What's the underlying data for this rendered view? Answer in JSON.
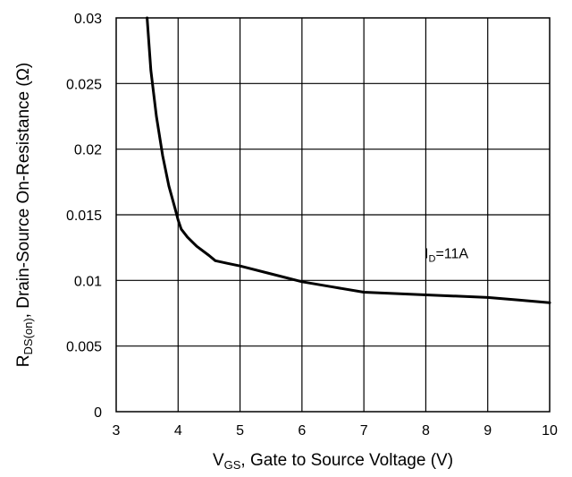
{
  "chart_data": {
    "type": "line",
    "title": "",
    "xlabel": {
      "main": "V",
      "sub": "GS",
      "rest": ", Gate to Source Voltage (V)"
    },
    "ylabel": {
      "main": "R",
      "sub": "DS(on)",
      "rest": ", Drain-Source On-Resistance (Ω)"
    },
    "xlim": [
      3,
      10
    ],
    "ylim": [
      0,
      0.03
    ],
    "x_ticks": [
      3,
      4,
      5,
      6,
      7,
      8,
      9,
      10
    ],
    "y_ticks": [
      0,
      0.005,
      0.01,
      0.015,
      0.02,
      0.025,
      0.03
    ],
    "x_tick_labels": [
      "3",
      "4",
      "5",
      "6",
      "7",
      "8",
      "9",
      "10"
    ],
    "y_tick_labels": [
      "0",
      "0.005",
      "0.01",
      "0.015",
      "0.02",
      "0.025",
      "0.03"
    ],
    "grid": true,
    "legend": "none",
    "annotation": {
      "main": "I",
      "sub": "D",
      "rest": "=11A"
    },
    "series": [
      {
        "color": "#000000",
        "x": [
          3.5,
          3.56,
          3.65,
          3.75,
          3.85,
          3.95,
          4.0,
          4.05,
          4.15,
          4.3,
          4.5,
          4.6,
          4.8,
          5.0,
          5.5,
          6.0,
          6.5,
          7.0,
          7.5,
          8.0,
          8.5,
          9.0,
          9.5,
          10.0
        ],
        "y": [
          0.03,
          0.026,
          0.0225,
          0.0195,
          0.0172,
          0.0155,
          0.0146,
          0.0139,
          0.0133,
          0.0126,
          0.0119,
          0.0115,
          0.0113,
          0.0111,
          0.0105,
          0.0099,
          0.0095,
          0.0091,
          0.009,
          0.0089,
          0.0088,
          0.0087,
          0.0085,
          0.0083
        ]
      }
    ]
  }
}
